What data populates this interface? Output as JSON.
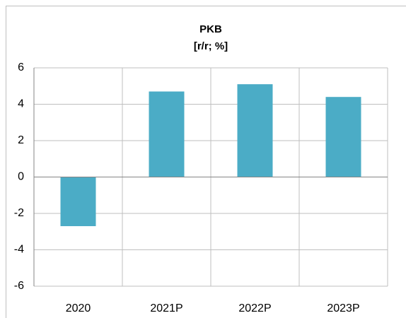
{
  "chart_data": {
    "type": "bar",
    "title": "PKB",
    "subtitle": "[r/r; %]",
    "categories": [
      "2020",
      "2021P",
      "2022P",
      "2023P"
    ],
    "values": [
      -2.7,
      4.7,
      5.1,
      4.4
    ],
    "color": "#4bacc6",
    "ylim": [
      -6,
      6
    ],
    "yticks": [
      -6,
      -4,
      -2,
      0,
      2,
      4,
      6
    ],
    "grid": true
  }
}
